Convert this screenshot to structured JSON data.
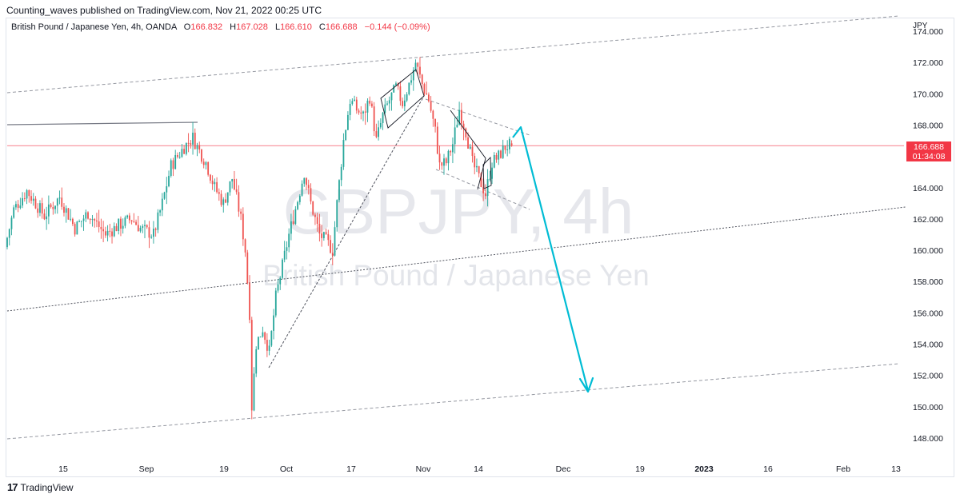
{
  "header": {
    "published_text": "Counting_waves published on TradingView.com, Nov 21, 2022 00:25 UTC"
  },
  "legend": {
    "symbol": "British Pound / Japanese Yen, 4h, OANDA",
    "open_label": "O",
    "open_value": "166.832",
    "high_label": "H",
    "high_value": "167.028",
    "low_label": "L",
    "low_value": "166.610",
    "close_label": "C",
    "close_value": "166.688",
    "change": "−0.144 (−0.09%)"
  },
  "currency": "JPY",
  "watermark": {
    "ticker": "GBPJPY, 4h",
    "name": "British Pound / Japanese Yen"
  },
  "last_price": {
    "value": "166.688",
    "countdown": "01:34:08"
  },
  "footer": {
    "brand": "TradingView"
  },
  "colors": {
    "up": "#26a69a",
    "down": "#ef5350",
    "projection": "#00bcd4",
    "price_line": "#f23645",
    "trendline": "#787b86"
  },
  "chart_data": {
    "type": "candlestick",
    "y_ticks": [
      "148.000",
      "150.000",
      "152.000",
      "154.000",
      "156.000",
      "158.000",
      "160.000",
      "162.000",
      "164.000",
      "166.000",
      "168.000",
      "170.000",
      "172.000",
      "174.000"
    ],
    "ylim": [
      147.0,
      175.0
    ],
    "x_ticks": [
      "15",
      "Sep",
      "19",
      "Oct",
      "17",
      "Nov",
      "14",
      "Dec",
      "19",
      "2023",
      "16",
      "Feb",
      "13"
    ],
    "anchors": [
      {
        "i": 0,
        "p": 160.2
      },
      {
        "i": 4,
        "p": 162.6
      },
      {
        "i": 10,
        "p": 163.8
      },
      {
        "i": 18,
        "p": 162.2
      },
      {
        "i": 25,
        "p": 163.4
      },
      {
        "i": 32,
        "p": 161.4
      },
      {
        "i": 38,
        "p": 162.4
      },
      {
        "i": 46,
        "p": 161.0
      },
      {
        "i": 52,
        "p": 161.6
      },
      {
        "i": 58,
        "p": 162.0
      },
      {
        "i": 62,
        "p": 161.4
      },
      {
        "i": 68,
        "p": 161.0
      },
      {
        "i": 72,
        "p": 163.0
      },
      {
        "i": 76,
        "p": 165.4
      },
      {
        "i": 82,
        "p": 166.6
      },
      {
        "i": 86,
        "p": 167.2
      },
      {
        "i": 88,
        "p": 166.6
      },
      {
        "i": 92,
        "p": 165.6
      },
      {
        "i": 96,
        "p": 164.0
      },
      {
        "i": 100,
        "p": 163.0
      },
      {
        "i": 104,
        "p": 164.6
      },
      {
        "i": 108,
        "p": 162.0
      },
      {
        "i": 110,
        "p": 160.0
      },
      {
        "i": 112,
        "p": 156.0
      },
      {
        "i": 113,
        "p": 150.0
      },
      {
        "i": 115,
        "p": 154.0
      },
      {
        "i": 118,
        "p": 155.0
      },
      {
        "i": 121,
        "p": 153.5
      },
      {
        "i": 124,
        "p": 157.0
      },
      {
        "i": 127,
        "p": 159.0
      },
      {
        "i": 130,
        "p": 161.0
      },
      {
        "i": 134,
        "p": 163.2
      },
      {
        "i": 137,
        "p": 165.0
      },
      {
        "i": 140,
        "p": 163.0
      },
      {
        "i": 144,
        "p": 161.0
      },
      {
        "i": 147,
        "p": 160.6
      },
      {
        "i": 150,
        "p": 160.0
      },
      {
        "i": 152,
        "p": 163.0
      },
      {
        "i": 155,
        "p": 167.0
      },
      {
        "i": 158,
        "p": 169.6
      },
      {
        "i": 161,
        "p": 169.0
      },
      {
        "i": 164,
        "p": 168.6
      },
      {
        "i": 167,
        "p": 169.8
      },
      {
        "i": 170,
        "p": 167.0
      },
      {
        "i": 173,
        "p": 168.6
      },
      {
        "i": 176,
        "p": 169.6
      },
      {
        "i": 179,
        "p": 170.4
      },
      {
        "i": 182,
        "p": 169.4
      },
      {
        "i": 185,
        "p": 170.6
      },
      {
        "i": 188,
        "p": 172.0
      },
      {
        "i": 191,
        "p": 170.6
      },
      {
        "i": 194,
        "p": 169.6
      },
      {
        "i": 197,
        "p": 167.6
      },
      {
        "i": 199,
        "p": 165.4
      },
      {
        "i": 202,
        "p": 165.6
      },
      {
        "i": 205,
        "p": 166.8
      },
      {
        "i": 208,
        "p": 169.0
      },
      {
        "i": 211,
        "p": 167.6
      },
      {
        "i": 214,
        "p": 165.6
      },
      {
        "i": 217,
        "p": 164.6
      },
      {
        "i": 220,
        "p": 163.6
      },
      {
        "i": 223,
        "p": 165.6
      },
      {
        "i": 226,
        "p": 166.0
      },
      {
        "i": 229,
        "p": 166.6
      },
      {
        "i": 231,
        "p": 166.7
      }
    ],
    "last": {
      "open": 166.832,
      "high": 167.028,
      "low": 166.61,
      "close": 166.688
    }
  }
}
